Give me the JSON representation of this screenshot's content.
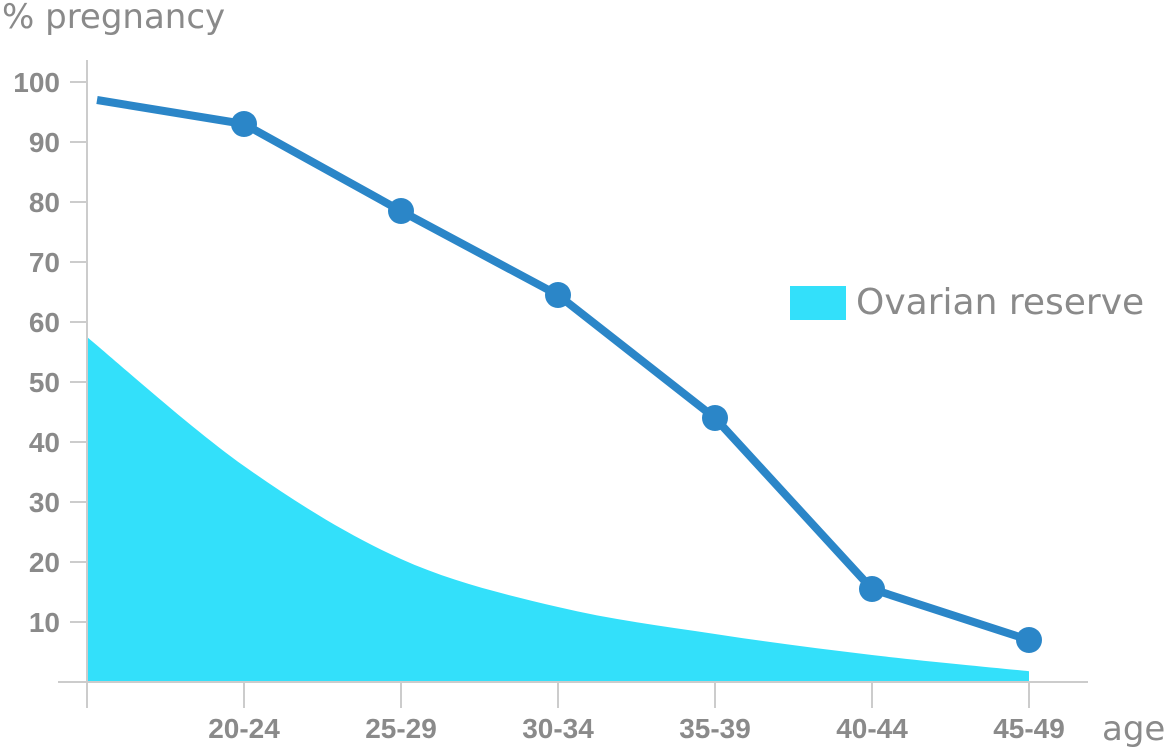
{
  "chart_data": {
    "type": "line",
    "ylabel": "% pregnancy",
    "xlabel": "age",
    "ylim": [
      0,
      100
    ],
    "yticks": [
      10,
      20,
      30,
      40,
      50,
      60,
      70,
      80,
      90,
      100
    ],
    "categories": [
      "",
      "20-24",
      "25-29",
      "30-34",
      "35-39",
      "40-44",
      "45-49"
    ],
    "series": [
      {
        "name": "% pregnancy",
        "kind": "line",
        "color": "#2b86c8",
        "values": [
          97,
          93,
          78.5,
          64.5,
          44,
          15.5,
          7
        ],
        "markers": [
          false,
          true,
          true,
          true,
          true,
          true,
          true
        ]
      },
      {
        "name": "Ovarian reserve",
        "kind": "area",
        "color": "#33e0fa",
        "values": [
          57.5,
          36,
          20.5,
          12.5,
          8,
          4.5,
          1.8
        ]
      }
    ],
    "legend": {
      "label": "Ovarian reserve",
      "position": "right"
    },
    "axis_color": "#cccccc"
  }
}
